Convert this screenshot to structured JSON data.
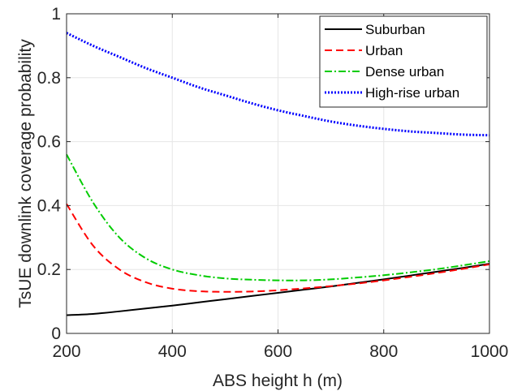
{
  "chart_data": {
    "type": "line",
    "xlabel": "ABS height h (m)",
    "ylabel": "TsUE downlink coverage probability",
    "xlim": [
      200,
      1000
    ],
    "ylim": [
      0,
      1
    ],
    "xticks": [
      200,
      400,
      600,
      800,
      1000
    ],
    "xtick_labels": [
      "200",
      "400",
      "600",
      "800",
      "1000"
    ],
    "yticks": [
      0,
      0.2,
      0.4,
      0.6,
      0.8,
      1
    ],
    "ytick_labels": [
      "0",
      "0.2",
      "0.4",
      "0.6",
      "0.8",
      "1"
    ],
    "grid": true,
    "legend_position": "top-right",
    "x": [
      200,
      250,
      300,
      350,
      400,
      450,
      500,
      550,
      600,
      650,
      700,
      750,
      800,
      850,
      900,
      950,
      1000
    ],
    "series": [
      {
        "name": "Suburban",
        "color": "#000000",
        "dash": "solid",
        "values": [
          0.057,
          0.061,
          0.069,
          0.078,
          0.087,
          0.097,
          0.107,
          0.117,
          0.127,
          0.137,
          0.147,
          0.158,
          0.169,
          0.181,
          0.193,
          0.205,
          0.218
        ]
      },
      {
        "name": "Urban",
        "color": "#ff0000",
        "dash": "dashed",
        "values": [
          0.405,
          0.275,
          0.2,
          0.16,
          0.14,
          0.132,
          0.13,
          0.131,
          0.135,
          0.141,
          0.148,
          0.156,
          0.166,
          0.177,
          0.189,
          0.202,
          0.216
        ]
      },
      {
        "name": "Dense urban",
        "color": "#00cc00",
        "dash": "dashdot",
        "values": [
          0.56,
          0.41,
          0.3,
          0.235,
          0.2,
          0.182,
          0.172,
          0.168,
          0.166,
          0.166,
          0.169,
          0.175,
          0.182,
          0.191,
          0.201,
          0.213,
          0.226
        ]
      },
      {
        "name": "High-rise urban",
        "color": "#0000ff",
        "dash": "dotted",
        "values": [
          0.94,
          0.9,
          0.865,
          0.83,
          0.8,
          0.77,
          0.745,
          0.72,
          0.698,
          0.68,
          0.663,
          0.65,
          0.64,
          0.632,
          0.627,
          0.622,
          0.62
        ]
      }
    ]
  }
}
